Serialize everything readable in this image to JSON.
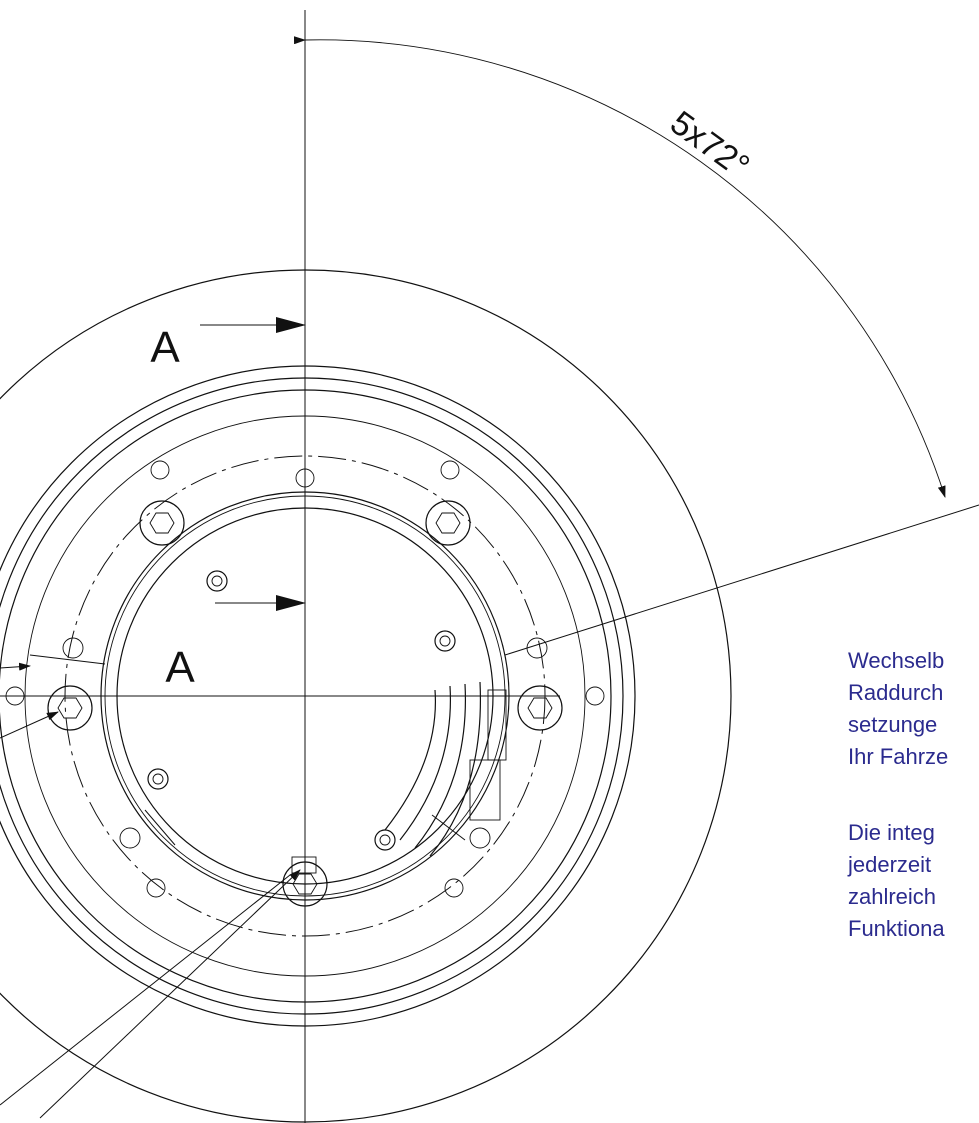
{
  "drawing": {
    "angle_label": "5x72°",
    "section_labels": [
      "A",
      "A"
    ]
  },
  "description": {
    "paragraphs": [
      [
        "Wechselb",
        "Raddurch",
        "setzunge",
        "Ihr Fahrze"
      ],
      [
        "Die integ",
        "jederzeit",
        "zahlreich",
        "Funktiona"
      ]
    ]
  }
}
